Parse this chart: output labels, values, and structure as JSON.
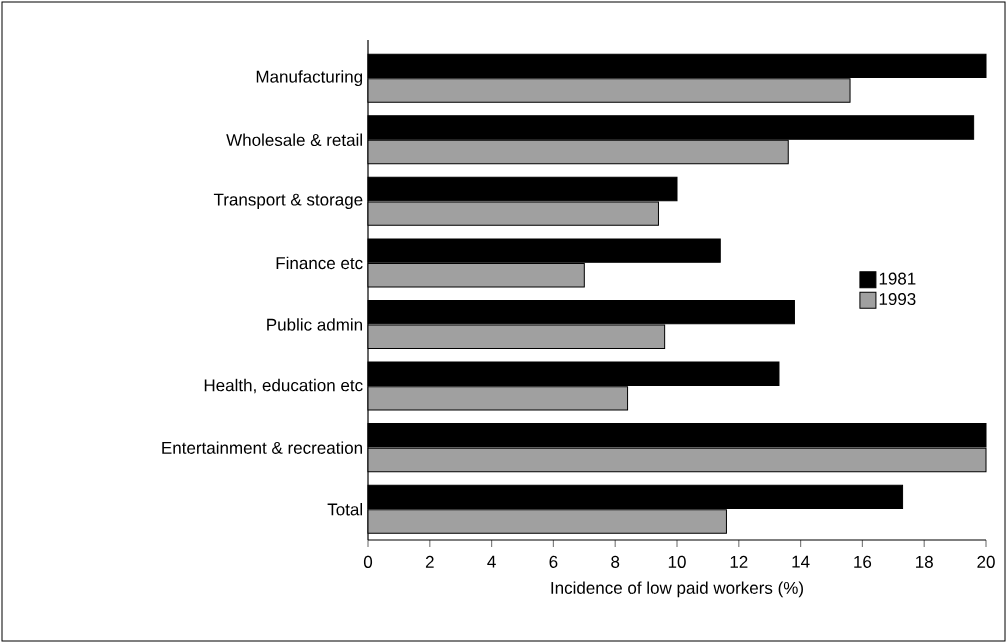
{
  "chart_data": {
    "type": "bar",
    "orientation": "horizontal",
    "xlabel": "Incidence of low paid workers (%)",
    "categories": [
      "Manufacturing",
      "Wholesale & retail",
      "Transport & storage",
      "Finance etc",
      "Public admin",
      "Health, education etc",
      "Entertainment & recreation",
      "Total"
    ],
    "series": [
      {
        "name": "1981",
        "color": "#000000",
        "values": [
          20.0,
          19.6,
          10.0,
          11.4,
          13.8,
          13.3,
          20.0,
          17.3
        ]
      },
      {
        "name": "1993",
        "color": "#a0a0a0",
        "values": [
          15.6,
          13.6,
          9.4,
          7.0,
          9.6,
          8.4,
          20.0,
          11.6
        ]
      }
    ],
    "xlim": [
      0,
      20
    ],
    "xticks": [
      0,
      2,
      4,
      6,
      8,
      10,
      12,
      14,
      16,
      18,
      20
    ],
    "grid": false,
    "legend": "right"
  }
}
